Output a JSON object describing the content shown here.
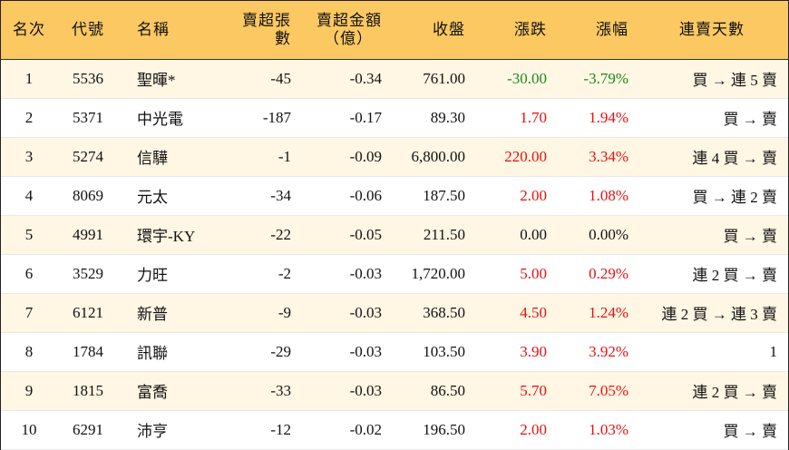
{
  "headers": {
    "rank": "名次",
    "code": "代號",
    "name": "名稱",
    "net_sell_lots": "賣超張數",
    "net_sell_amount_line1": "賣超金額",
    "net_sell_amount_line2": "（億）",
    "close": "收盤",
    "change": "漲跌",
    "change_pct": "漲幅",
    "streak": "連賣天數"
  },
  "rows": [
    {
      "rank": "1",
      "code": "5536",
      "name": "聖暉*",
      "lots": "-45",
      "amount": "-0.34",
      "close": "761.00",
      "change": "-30.00",
      "pct": "-3.79%",
      "streak": "買 → 連 5 賣",
      "trend": "down"
    },
    {
      "rank": "2",
      "code": "5371",
      "name": "中光電",
      "lots": "-187",
      "amount": "-0.17",
      "close": "89.30",
      "change": "1.70",
      "pct": "1.94%",
      "streak": "買 → 賣",
      "trend": "up"
    },
    {
      "rank": "3",
      "code": "5274",
      "name": "信驊",
      "lots": "-1",
      "amount": "-0.09",
      "close": "6,800.00",
      "change": "220.00",
      "pct": "3.34%",
      "streak": "連 4 買 → 賣",
      "trend": "up"
    },
    {
      "rank": "4",
      "code": "8069",
      "name": "元太",
      "lots": "-34",
      "amount": "-0.06",
      "close": "187.50",
      "change": "2.00",
      "pct": "1.08%",
      "streak": "買 → 連 2 賣",
      "trend": "up"
    },
    {
      "rank": "5",
      "code": "4991",
      "name": "環宇-KY",
      "lots": "-22",
      "amount": "-0.05",
      "close": "211.50",
      "change": "0.00",
      "pct": "0.00%",
      "streak": "買 → 賣",
      "trend": "flat"
    },
    {
      "rank": "6",
      "code": "3529",
      "name": "力旺",
      "lots": "-2",
      "amount": "-0.03",
      "close": "1,720.00",
      "change": "5.00",
      "pct": "0.29%",
      "streak": "連 2 買 → 賣",
      "trend": "up"
    },
    {
      "rank": "7",
      "code": "6121",
      "name": "新普",
      "lots": "-9",
      "amount": "-0.03",
      "close": "368.50",
      "change": "4.50",
      "pct": "1.24%",
      "streak": "連 2 買 → 連 3 賣",
      "trend": "up"
    },
    {
      "rank": "8",
      "code": "1784",
      "name": "訊聯",
      "lots": "-29",
      "amount": "-0.03",
      "close": "103.50",
      "change": "3.90",
      "pct": "3.92%",
      "streak": "1",
      "trend": "up"
    },
    {
      "rank": "9",
      "code": "1815",
      "name": "富喬",
      "lots": "-33",
      "amount": "-0.03",
      "close": "86.50",
      "change": "5.70",
      "pct": "7.05%",
      "streak": "連 2 買 → 賣",
      "trend": "up"
    },
    {
      "rank": "10",
      "code": "6291",
      "name": "沛亨",
      "lots": "-12",
      "amount": "-0.02",
      "close": "196.50",
      "change": "2.00",
      "pct": "1.03%",
      "streak": "買 → 賣",
      "trend": "up"
    }
  ],
  "colors": {
    "header_bg": "#fbc862",
    "row_alt_bg": "#fff6e4",
    "up": "#e81010",
    "down": "#1a8a1a",
    "flat": "#111111"
  }
}
